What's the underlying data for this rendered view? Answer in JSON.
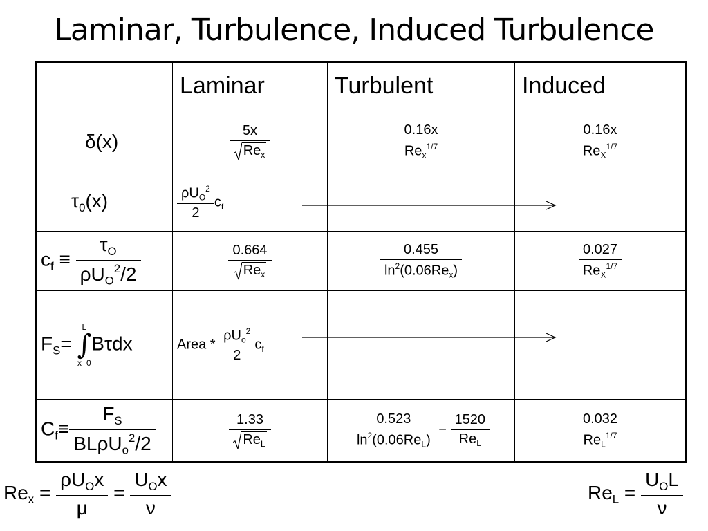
{
  "title": "Laminar, Turbulence, Induced Turbulence",
  "table": {
    "header": [
      "Laminar",
      "Turbulent",
      "Induced"
    ],
    "rows": [
      {
        "label": [
          "δ(x)"
        ],
        "cells": [
          [
            {
              "num": [
                "5x"
              ],
              "den": [
                {
                  "sqrt": [
                    "Re",
                    {
                      "sub": "x"
                    }
                  ]
                }
              ]
            }
          ],
          [
            {
              "num": [
                "0.16x"
              ],
              "den": [
                "Re",
                {
                  "sub": "x"
                },
                {
                  "sup": "1/7"
                }
              ]
            }
          ],
          [
            {
              "num": [
                "0.16x"
              ],
              "den": [
                "Re",
                {
                  "sub": "X"
                },
                {
                  "sup": "1/7"
                }
              ]
            }
          ]
        ]
      },
      {
        "label": [
          "τ",
          {
            "sub": "0"
          },
          "(x)"
        ],
        "cells": [
          [
            {
              "num": [
                "ρU",
                {
                  "sub": "O"
                },
                {
                  "sup": "2"
                }
              ],
              "den": [
                "2"
              ]
            },
            "c",
            {
              "sub": "f"
            }
          ],
          [],
          []
        ]
      },
      {
        "label": [
          "c",
          {
            "sub": "f"
          },
          " ≡ ",
          {
            "num": [
              "τ",
              {
                "sub": "O"
              }
            ],
            "den": [
              "ρU",
              {
                "sub": "O"
              },
              {
                "sup": "2"
              },
              "/2"
            ]
          }
        ],
        "cells": [
          [
            {
              "num": [
                "0.664"
              ],
              "den": [
                {
                  "sqrt": [
                    "Re",
                    {
                      "sub": "x"
                    }
                  ]
                }
              ]
            }
          ],
          [
            {
              "num": [
                "0.455"
              ],
              "den": [
                "ln",
                {
                  "sup": "2"
                },
                "(0.06Re",
                {
                  "sub": "x"
                },
                ")"
              ]
            }
          ],
          [
            {
              "num": [
                "0.027"
              ],
              "den": [
                "Re",
                {
                  "sub": "X"
                },
                {
                  "sup": "1/7"
                }
              ]
            }
          ]
        ]
      },
      {
        "label": [
          "F",
          {
            "sub": "S"
          },
          "= ",
          {
            "upper": "L",
            "sign": "∫",
            "lower": "x=0"
          },
          "Bτdx"
        ],
        "cells": [
          [
            "Area * ",
            {
              "num": [
                "ρU",
                {
                  "sub": "o"
                },
                {
                  "sup": "2"
                }
              ],
              "den": [
                "2"
              ]
            },
            "c",
            {
              "sub": "f"
            }
          ],
          [],
          []
        ]
      },
      {
        "label": [
          "C",
          {
            "sub": "f"
          },
          "≡",
          {
            "num": [
              "F",
              {
                "sub": "S"
              }
            ],
            "den": [
              "BLρU",
              {
                "sub": "o"
              },
              {
                "sup": "2"
              },
              "/2"
            ]
          }
        ],
        "cells": [
          [
            {
              "num": [
                "1.33"
              ],
              "den": [
                {
                  "sqrt": [
                    "Re",
                    {
                      "sub": "L"
                    }
                  ]
                }
              ]
            }
          ],
          [
            {
              "num": [
                "0.523"
              ],
              "den": [
                "ln",
                {
                  "sup": "2"
                },
                "(0.06Re",
                {
                  "sub": "L"
                },
                ")"
              ]
            },
            " − ",
            {
              "num": [
                "1520"
              ],
              "den": [
                "Re",
                {
                  "sub": "L"
                }
              ]
            }
          ],
          [
            {
              "num": [
                "0.032"
              ],
              "den": [
                "Re",
                {
                  "sub": "L"
                },
                {
                  "sup": "1/7"
                }
              ]
            }
          ]
        ]
      }
    ]
  },
  "footer": {
    "left": [
      "Re",
      {
        "sub": "x"
      },
      " = ",
      {
        "num": [
          "ρU",
          {
            "sub": "O"
          },
          "x"
        ],
        "den": [
          "μ"
        ]
      },
      " = ",
      {
        "num": [
          "U",
          {
            "sub": "O"
          },
          "x"
        ],
        "den": [
          "ν"
        ]
      }
    ],
    "right": [
      "Re",
      {
        "sub": "L"
      },
      " = ",
      {
        "num": [
          "U",
          {
            "sub": "O"
          },
          "L"
        ],
        "den": [
          "ν"
        ]
      }
    ]
  }
}
